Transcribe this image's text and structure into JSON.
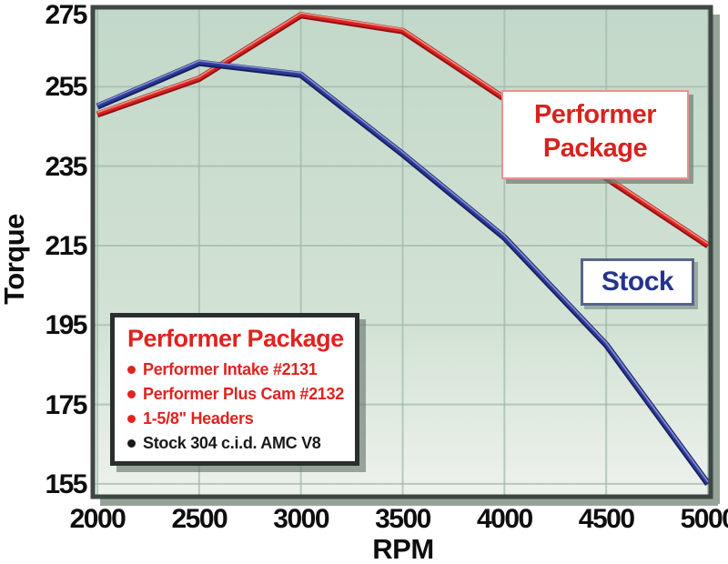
{
  "chart_data": {
    "type": "line",
    "title": "",
    "xlabel": "RPM",
    "ylabel": "Torque",
    "x": [
      2000,
      2500,
      3000,
      3500,
      4000,
      4500,
      5000
    ],
    "xticks": [
      2000,
      2500,
      3000,
      3500,
      4000,
      4500,
      5000
    ],
    "yticks": [
      155,
      175,
      195,
      215,
      235,
      255,
      275
    ],
    "xlim": [
      2000,
      5000
    ],
    "ylim": [
      152,
      276
    ],
    "grid": true,
    "legend_position": "labeled boxes inside plot",
    "series": [
      {
        "name": "Performer Package",
        "color": "#d7231f",
        "color_dark": "#8e1014",
        "color_light": "#f4978c",
        "values": [
          248,
          257,
          273,
          269,
          252,
          232,
          215
        ]
      },
      {
        "name": "Stock",
        "color": "#2c3a96",
        "color_dark": "#161e5e",
        "color_light": "#8c97d6",
        "values": [
          250,
          261,
          258,
          238,
          217,
          190,
          155
        ]
      }
    ]
  },
  "annotations": {
    "performer_label": {
      "line1": "Performer",
      "line2": "Package",
      "color": "#d7231f"
    },
    "stock_label": {
      "text": "Stock",
      "color": "#26348e"
    }
  },
  "legend_box": {
    "title": "Performer Package",
    "title_color": "#e02320",
    "items": [
      {
        "text": "Performer Intake #2131",
        "color": "#e02320"
      },
      {
        "text": "Performer Plus Cam #2132",
        "color": "#e02320"
      },
      {
        "text": "1-5/8\" Headers",
        "color": "#e02320"
      },
      {
        "text": "Stock 304 c.i.d. AMC V8",
        "color": "#1a1a1a"
      }
    ]
  },
  "colors": {
    "plot_bg_top": "#c2d8c9",
    "plot_bg_mid": "#d3e2d5",
    "plot_bg_bottom": "#edf2ec",
    "gridline": "#a0b9ab",
    "frame": "#3e4744",
    "frame_shadow": "#95a399",
    "tick_text": "#0e0e0e"
  }
}
